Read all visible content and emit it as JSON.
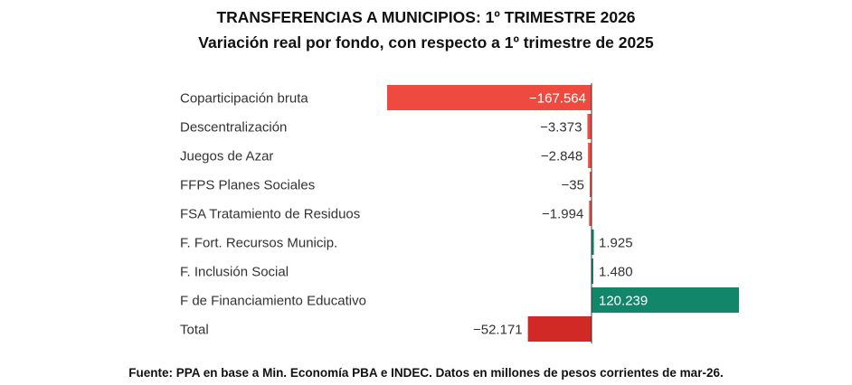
{
  "title": "TRANSFERENCIAS A MUNICIPIOS: 1º TRIMESTRE 2026",
  "subtitle": "Variación real por fondo, con respecto a 1º trimestre de 2025",
  "source": "Fuente: PPA en base a Min. Economía PBA e INDEC. Datos en millones de pesos corrientes de mar-26.",
  "colors": {
    "negative": "#ef4a3f",
    "positive": "#12866a",
    "total": "#d12a26",
    "axis": "#333333",
    "label_light": "#ffffff",
    "label_dark": "#333333"
  },
  "chart_data": {
    "type": "bar",
    "orientation": "horizontal",
    "categories": [
      "Coparticipación bruta",
      "Descentralización",
      "Juegos de Azar",
      "FFPS Planes Sociales",
      "FSA Tratamiento de Residuos",
      "F. Fort. Recursos Municip.",
      "F. Inclusión Social",
      "F de Financiamiento Educativo",
      "Total"
    ],
    "values": [
      -167564,
      -3373,
      -2848,
      -35,
      -1994,
      1925,
      1480,
      120239,
      -52171
    ],
    "labels": [
      "−167.564",
      "−3.373",
      "−2.848",
      "−35",
      "−1.994",
      "1.925",
      "1.480",
      "120.239",
      "−52.171"
    ],
    "total_index": 8,
    "xlim": [
      -167564,
      120239
    ],
    "grid": false,
    "legend": "none"
  }
}
